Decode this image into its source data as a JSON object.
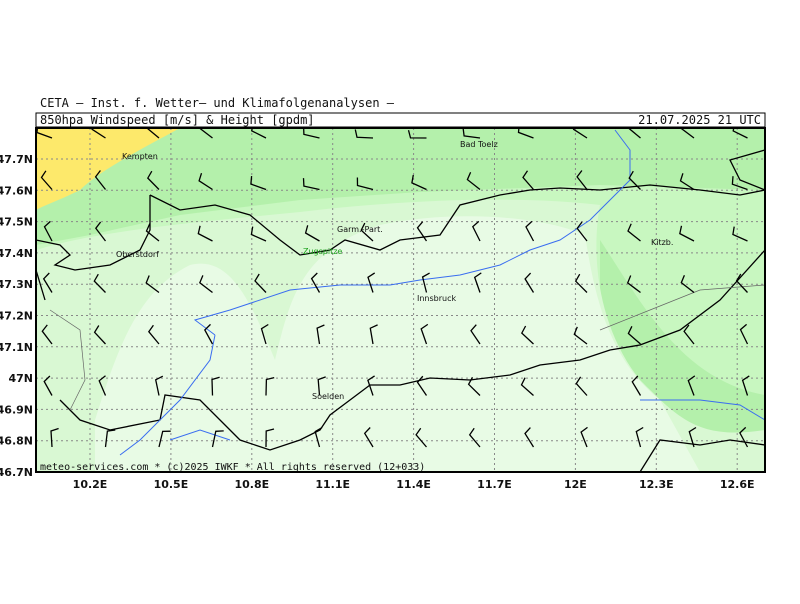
{
  "header": {
    "title": "CETA – Inst. f. Wetter– und Klimafolgenanalysen –",
    "product": "850hpa Windspeed [m/s] & Height [gpdm]",
    "valid_time": "21.07.2025 21 UTC"
  },
  "axes": {
    "lat_labels": [
      "47.7N",
      "47.6N",
      "47.5N",
      "47.4N",
      "47.3N",
      "47.2N",
      "47.1N",
      "47N",
      "46.9N",
      "46.8N",
      "46.7N"
    ],
    "lon_labels": [
      "10.2E",
      "10.5E",
      "10.8E",
      "11.1E",
      "11.4E",
      "11.7E",
      "12E",
      "12.3E",
      "12.6E"
    ]
  },
  "places": [
    "Kempten",
    "Bad Toelz",
    "Garm.-Part.",
    "Oberstdorf",
    "Zugspitze",
    "Innsbruck",
    "Kitzb.",
    "Soelden"
  ],
  "footer": "meteo-services.com * (c)2025 IWKF * All rights reserved (12+033)"
}
